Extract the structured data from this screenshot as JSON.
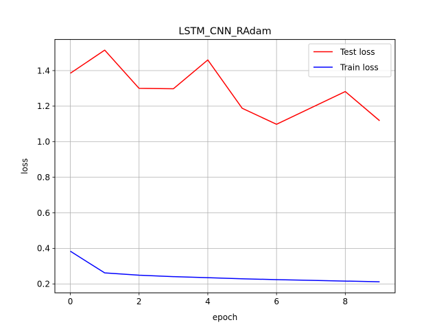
{
  "chart_data": {
    "type": "line",
    "title": "LSTM_CNN_RAdam",
    "xlabel": "epoch",
    "ylabel": "loss",
    "x": [
      0,
      1,
      2,
      3,
      4,
      5,
      6,
      7,
      8,
      9
    ],
    "xlim": [
      -0.45,
      9.45
    ],
    "ylim": [
      0.15,
      1.575
    ],
    "xticks": [
      0,
      2,
      4,
      6,
      8
    ],
    "yticks": [
      0.2,
      0.4,
      0.6,
      0.8,
      1.0,
      1.2,
      1.4
    ],
    "xtick_labels": [
      "0",
      "2",
      "4",
      "6",
      "8"
    ],
    "ytick_labels": [
      "0.2",
      "0.4",
      "0.6",
      "0.8",
      "1.0",
      "1.2",
      "1.4"
    ],
    "grid": true,
    "legend_position": "top-right",
    "series": [
      {
        "name": "Test loss",
        "color": "#ff0000",
        "values": [
          1.385,
          1.515,
          1.3,
          1.298,
          1.46,
          1.188,
          1.098,
          1.19,
          1.282,
          1.118
        ]
      },
      {
        "name": "Train loss",
        "color": "#0000ff",
        "values": [
          0.384,
          0.262,
          0.249,
          0.241,
          0.235,
          0.229,
          0.224,
          0.22,
          0.216,
          0.212
        ]
      }
    ]
  }
}
